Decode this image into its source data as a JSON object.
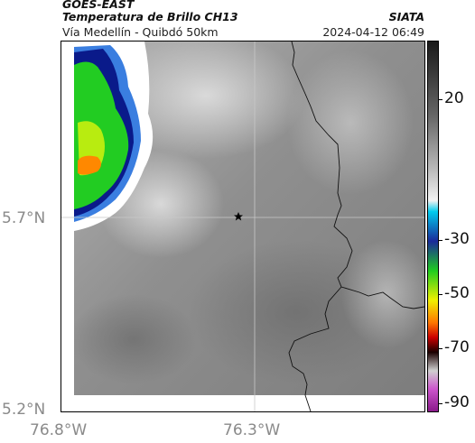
{
  "header": {
    "satellite": "GOES-EAST",
    "product": "Temperatura de Brillo CH13",
    "location": "Vía Medellín - Quibdó 50km",
    "source": "SIATA",
    "timestamp": "2024-04-12 06:49"
  },
  "axes": {
    "x_ticks": [
      "76.8°W",
      "76.3°W"
    ],
    "y_ticks": [
      "5.7°N",
      "5.2°N"
    ]
  },
  "colorbar": {
    "ticks": [
      "20",
      "-30",
      "-50",
      "-70",
      "-90"
    ],
    "colors": [
      "#1a1a1a",
      "#666666",
      "#bdbdbd",
      "#f2f2f2",
      "#00ccee",
      "#1a2a9a",
      "#1fcc1f",
      "#f0f000",
      "#ff7700",
      "#cc0000",
      "#1a0000",
      "#d0d0d0",
      "#cc55cc",
      "#8a1a8a"
    ]
  },
  "map": {
    "marker_icon": "star-icon",
    "cloud_colors": [
      "#ffffff",
      "#3a7ee0",
      "#0a1a8a",
      "#22cc22",
      "#b8ec10",
      "#ff8800"
    ]
  }
}
